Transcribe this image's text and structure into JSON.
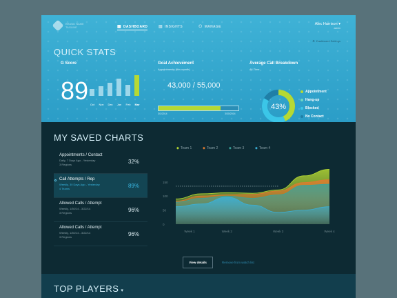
{
  "header": {
    "brand": [
      "BRAND NAME",
      "TAGLINE"
    ],
    "nav": [
      {
        "label": "DASHBOARD",
        "icon": "grid-icon",
        "active": true
      },
      {
        "label": "INSIGHTS",
        "icon": "bar-chart-icon",
        "active": false
      },
      {
        "label": "MANAGE",
        "icon": "people-icon",
        "active": false
      }
    ],
    "user_name": "Alec Harrison",
    "user_sub": "admin",
    "dashboard_settings": "Dashboard Settings"
  },
  "quick_stats": {
    "title": "QUICK STATS",
    "g_score": {
      "label": "G Score",
      "value": "89",
      "bars": [
        {
          "label": "Oct",
          "value": 0.35
        },
        {
          "label": "Nov",
          "value": 0.48
        },
        {
          "label": "Dec",
          "value": 0.62
        },
        {
          "label": "Jan",
          "value": 0.82
        },
        {
          "label": "Feb",
          "value": 0.55
        },
        {
          "label": "Mar",
          "value": 1.0
        }
      ]
    },
    "goal": {
      "label": "Goal Achievement",
      "sub": "Appointments (this month)",
      "current": "43,000",
      "separator": "/",
      "target": "55,000",
      "progress": 0.78,
      "start_date": "3/1/2014",
      "end_date": "3/30/2014"
    },
    "calls": {
      "label": "Average Call Breakdown",
      "sub": "All-Time",
      "center": "43%",
      "legend": [
        {
          "label": "Appointment",
          "color": "#b5d933"
        },
        {
          "label": "Hang-up",
          "color": "#6fd6c4"
        },
        {
          "label": "Blocked",
          "color": "#3bc6e8"
        },
        {
          "label": "No Contact",
          "color": "#1f7fa7"
        }
      ]
    }
  },
  "saved_charts": {
    "title": "MY SAVED CHARTS",
    "items": [
      {
        "title": "Appointments / Contact",
        "sub1": "Daily, 7 Days Ago - Yesterday",
        "sub2": "3 Regions",
        "pct": "32%",
        "active": false
      },
      {
        "title": "Call Attempts / Rep",
        "sub1": "Weekly, 30 Days Ago - Yesterday",
        "sub2": "4 Teams",
        "pct": "89%",
        "active": true
      },
      {
        "title": "Allowed Calls / Attempt",
        "sub1": "Weekly, 1/30/14 - 3/22/14",
        "sub2": "3 Regions",
        "pct": "96%",
        "active": false
      },
      {
        "title": "Allowed Calls / Attempt",
        "sub1": "Weekly, 1/30/14 - 3/22/14",
        "sub2": "3 Regions",
        "pct": "96%",
        "active": false
      }
    ],
    "view_details": "View details",
    "remove": "Remove from watch list"
  },
  "chart_data": {
    "type": "area",
    "categories": [
      "Week 1",
      "Week 2",
      "Week 3",
      "Week 4"
    ],
    "ylim": [
      0,
      150
    ],
    "yticks": [
      "0",
      "50",
      "100",
      "150"
    ],
    "x": [
      1,
      1.5,
      2,
      2.5,
      3,
      3.5,
      4
    ],
    "series": [
      {
        "name": "Team 1",
        "color": "#b5d933",
        "values": [
          90,
          108,
          112,
          110,
          122,
          172,
          195
        ]
      },
      {
        "name": "Team 2",
        "color": "#e07a2f",
        "values": [
          82,
          100,
          104,
          106,
          118,
          148,
          158
        ]
      },
      {
        "name": "Team 3",
        "color": "#3aa39a",
        "values": [
          78,
          92,
          100,
          92,
          104,
          138,
          142
        ]
      },
      {
        "name": "Team 4",
        "color": "#3bb0d8",
        "values": [
          62,
          72,
          96,
          68,
          42,
          50,
          62
        ]
      }
    ],
    "ref_line": 135
  },
  "top_players": {
    "title": "TOP PLAYERS",
    "caret": "▾"
  }
}
